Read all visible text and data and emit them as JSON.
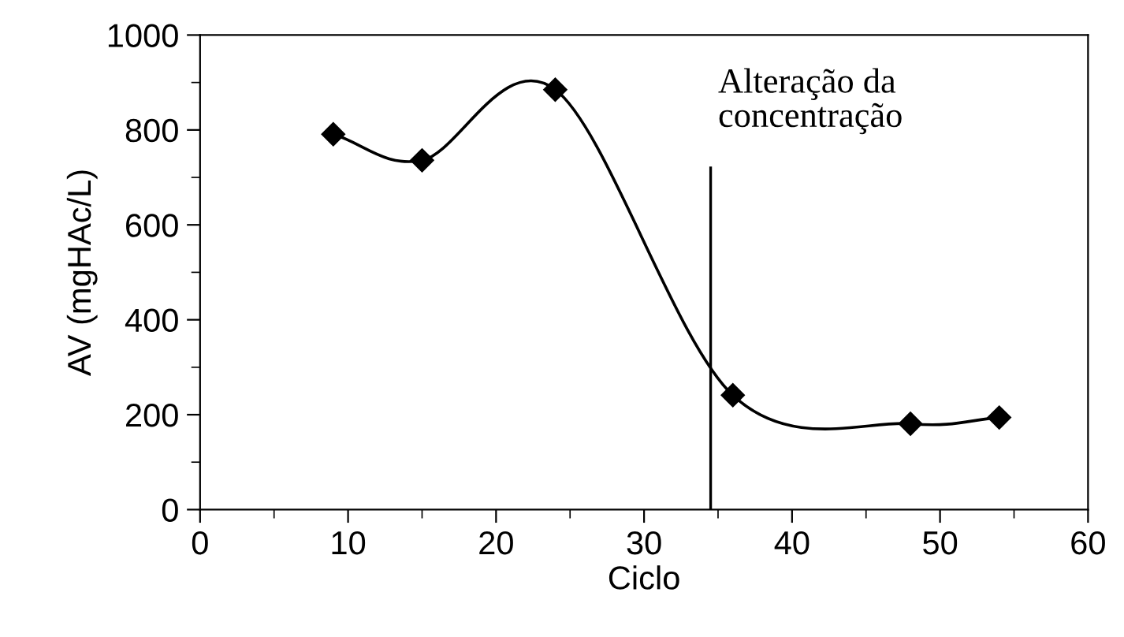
{
  "chart_data": {
    "type": "line",
    "xlabel": "Ciclo",
    "ylabel": "AV (mgHAc/L)",
    "x": [
      9,
      15,
      24,
      36,
      48,
      54
    ],
    "series": [
      {
        "color": "#000000",
        "values": [
          791,
          736,
          885,
          241,
          181,
          194
        ]
      }
    ],
    "marker": "diamond",
    "line_style": "solid",
    "grid": false,
    "legend": false,
    "xlim": [
      0,
      60
    ],
    "xticks": [
      0,
      10,
      20,
      30,
      40,
      50,
      60
    ],
    "ylim": [
      0,
      1000
    ],
    "yticks": [
      0,
      200,
      400,
      600,
      800,
      1000
    ],
    "ref_lines": [
      {
        "axis": "x",
        "value": 34.5,
        "label": "Alteração da\nconcentração",
        "color": "#000000"
      }
    ]
  }
}
